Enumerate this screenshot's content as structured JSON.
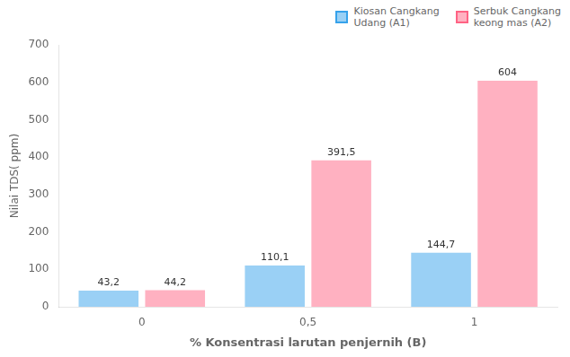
{
  "chart_data": {
    "type": "bar",
    "categories": [
      "0",
      "0,5",
      "1"
    ],
    "series": [
      {
        "name": "Kiosan Cangkang\nUdang (A1)",
        "values": [
          43.2,
          110.1,
          144.7
        ],
        "value_labels": [
          "43,2",
          "110,1",
          "144,7"
        ]
      },
      {
        "name": "Serbuk Cangkang\nkeong mas (A2)",
        "values": [
          44.2,
          391.5,
          604
        ],
        "value_labels": [
          "44,2",
          "391,5",
          "604"
        ]
      }
    ],
    "xlabel": "% Konsentrasi larutan penjernih (B)",
    "ylabel": "Nilai TDS( ppm)",
    "ylim": [
      0,
      700
    ],
    "yticks": [
      0,
      100,
      200,
      300,
      400,
      500,
      600,
      700
    ],
    "grid": false,
    "legend": "upper right",
    "data_labels": true
  }
}
